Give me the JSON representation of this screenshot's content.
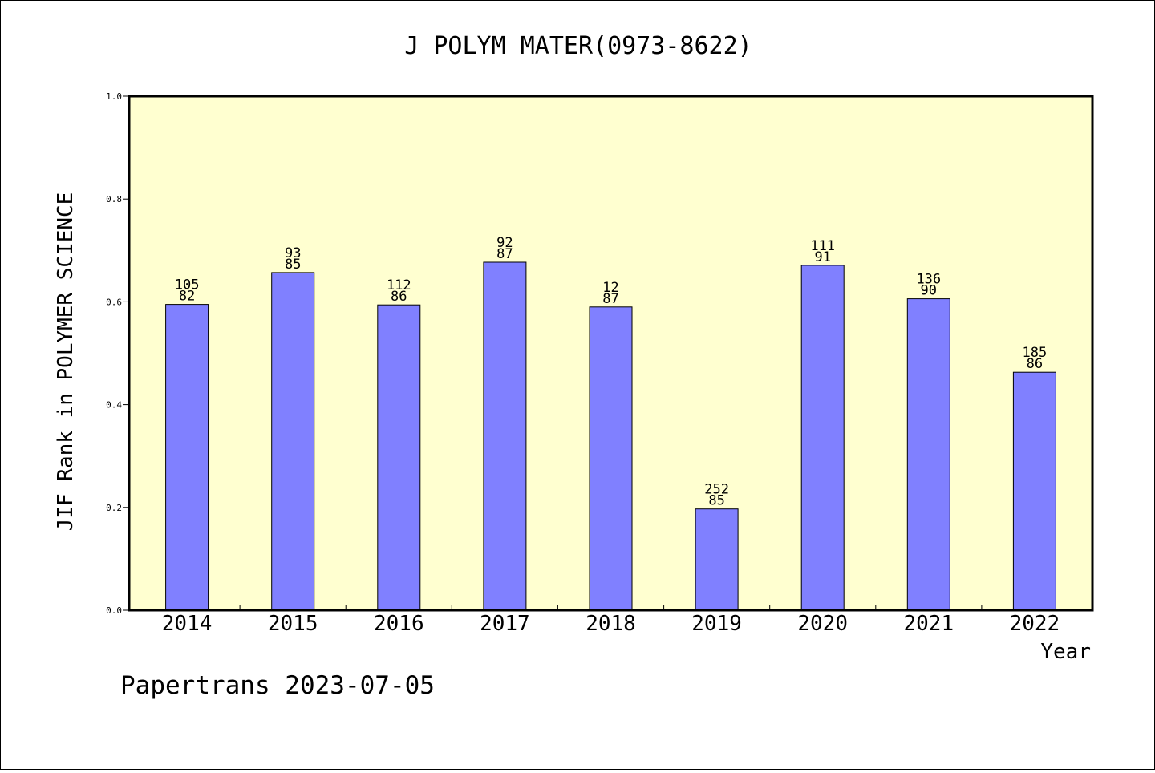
{
  "footer_text": "Papertrans 2023-07-05",
  "chart_data": {
    "type": "bar",
    "title": "J POLYM MATER(0973-8622)",
    "xlabel": "Year",
    "ylabel": "JIF Rank in POLYMER SCIENCE",
    "ylim": [
      0,
      1.0
    ],
    "yticks": [
      "0.0",
      "0.2",
      "0.4",
      "0.6",
      "0.8",
      "1.0"
    ],
    "categories": [
      "2014",
      "2015",
      "2016",
      "2017",
      "2018",
      "2019",
      "2020",
      "2021",
      "2022"
    ],
    "values": [
      0.595,
      0.657,
      0.594,
      0.677,
      0.59,
      0.197,
      0.671,
      0.606,
      0.463
    ],
    "rank_labels": [
      "105",
      "93",
      "112",
      "92",
      "12",
      "252",
      "111",
      "136",
      "185"
    ],
    "total_labels": [
      "82",
      "85",
      "86",
      "87",
      "87",
      "85",
      "91",
      "90",
      "86"
    ],
    "grid": false,
    "colors": {
      "plot_background": "#ffffd0",
      "bar_fill": "#8080ff",
      "bar_stroke": "#000000"
    }
  }
}
